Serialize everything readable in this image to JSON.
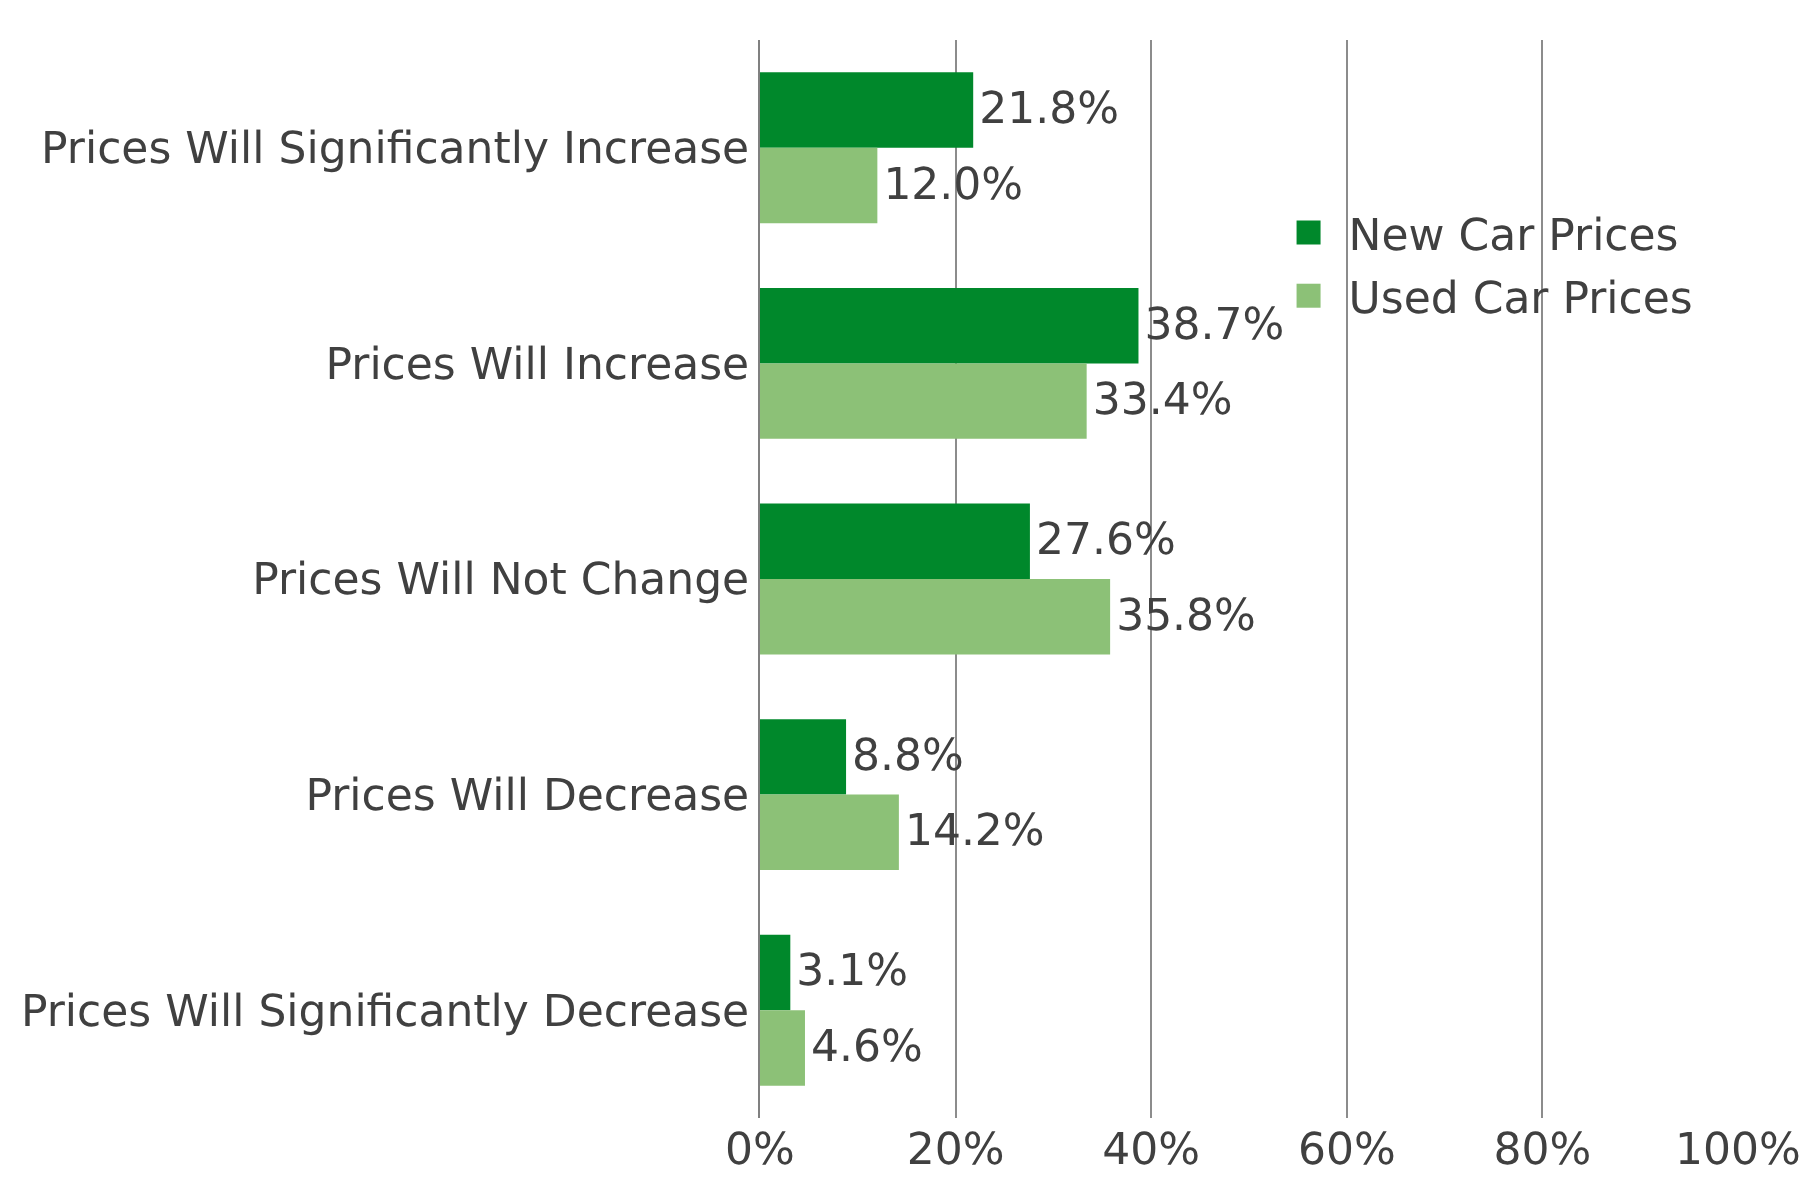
{
  "chart_data": {
    "type": "bar",
    "orientation": "horizontal",
    "categories": [
      "Prices Will Significantly Increase",
      "Prices Will Increase",
      "Prices Will Not Change",
      "Prices Will Decrease",
      "Prices Will Significantly Decrease"
    ],
    "series": [
      {
        "name": "New Car Prices",
        "color": "#00882b",
        "values": [
          21.8,
          38.7,
          27.6,
          8.8,
          3.1
        ],
        "value_labels": [
          "21.8%",
          "38.7%",
          "27.6%",
          "8.8%",
          "3.1%"
        ]
      },
      {
        "name": "Used Car Prices",
        "color": "#8cc177",
        "values": [
          12.0,
          33.4,
          35.8,
          14.2,
          4.6
        ],
        "value_labels": [
          "12.0%",
          "33.4%",
          "35.8%",
          "14.2%",
          "4.6%"
        ]
      }
    ],
    "xlim": [
      0,
      100
    ],
    "xticks": [
      {
        "value": 0,
        "label": "0%"
      },
      {
        "value": 20,
        "label": "20%"
      },
      {
        "value": 40,
        "label": "40%"
      },
      {
        "value": 60,
        "label": "60%"
      },
      {
        "value": 80,
        "label": "80%"
      },
      {
        "value": 100,
        "label": "100%"
      }
    ],
    "grid": "x",
    "legend": "right"
  }
}
